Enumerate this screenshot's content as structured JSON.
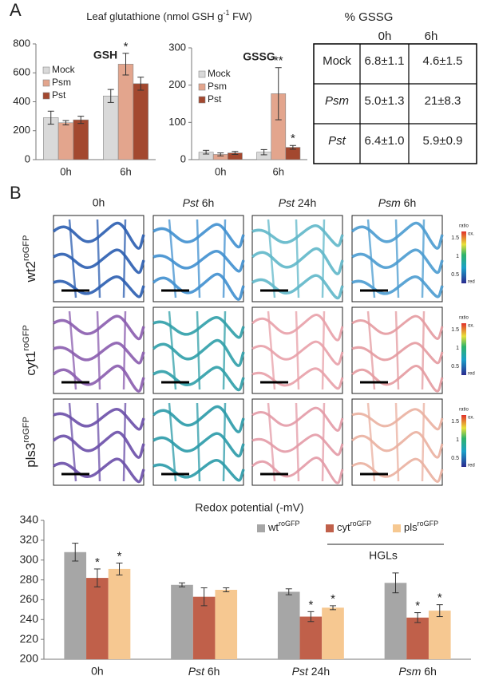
{
  "panel_labels": [
    "A",
    "B"
  ],
  "glutathione_heading": {
    "text": "Leaf glutathione (nmol GSH g",
    "superscript": "-1",
    "text_end": " FW)"
  },
  "chart_data": [
    {
      "type": "bar",
      "title": "GSH",
      "categories": [
        "0h",
        "6h"
      ],
      "ylim": [
        0,
        800
      ],
      "yticks": [
        0,
        200,
        400,
        600,
        800
      ],
      "legend": "upper left",
      "series": [
        {
          "name": "Mock",
          "color": "#d9d9d9",
          "values": [
            290,
            440
          ],
          "errors": [
            45,
            45
          ],
          "annotations": [
            null,
            null
          ]
        },
        {
          "name": "Psm",
          "color": "#e3a58d",
          "values": [
            255,
            660
          ],
          "errors": [
            15,
            75
          ],
          "annotations": [
            null,
            "*"
          ]
        },
        {
          "name": "Pst",
          "color": "#a3482f",
          "values": [
            275,
            525
          ],
          "errors": [
            25,
            45
          ],
          "annotations": [
            null,
            null
          ]
        }
      ]
    },
    {
      "type": "bar",
      "title": "GSSG",
      "categories": [
        "0h",
        "6h"
      ],
      "ylim": [
        0,
        300
      ],
      "yticks": [
        0,
        100,
        200,
        300
      ],
      "legend": "upper left",
      "series": [
        {
          "name": "Mock",
          "color": "#d9d9d9",
          "values": [
            20,
            20
          ],
          "errors": [
            5,
            7
          ],
          "annotations": [
            null,
            null
          ]
        },
        {
          "name": "Psm",
          "color": "#e3a58d",
          "values": [
            14,
            177
          ],
          "errors": [
            4,
            70
          ],
          "annotations": [
            null,
            "**"
          ]
        },
        {
          "name": "Pst",
          "color": "#a3482f",
          "values": [
            18,
            33
          ],
          "errors": [
            4,
            5
          ],
          "annotations": [
            null,
            "*"
          ]
        }
      ]
    },
    {
      "type": "bar",
      "title": "Redox potential (-mV)",
      "categories": [
        "0h",
        "Pst 6h",
        "Pst 24h",
        "Psm 6h"
      ],
      "ylim": [
        200,
        340
      ],
      "yticks": [
        200,
        220,
        240,
        260,
        280,
        300,
        320,
        340
      ],
      "legend": "upper right",
      "group_label": "HGLs",
      "series": [
        {
          "name": "wt",
          "name_superscript": "roGFP",
          "color": "#a6a6a6",
          "values": [
            308,
            275,
            268,
            277
          ],
          "errors": [
            9,
            2,
            3,
            10
          ],
          "annotations": [
            null,
            null,
            null,
            null
          ]
        },
        {
          "name": "cyt",
          "name_superscript": "roGFP",
          "color": "#c0604a",
          "values": [
            282,
            263,
            243,
            242
          ],
          "errors": [
            9,
            9,
            5,
            5
          ],
          "annotations": [
            "*",
            null,
            "*",
            "*"
          ]
        },
        {
          "name": "pls",
          "name_superscript": "roGFP",
          "color": "#f6c891",
          "values": [
            291,
            270,
            252,
            249
          ],
          "errors": [
            6,
            2,
            2,
            6
          ],
          "annotations": [
            "*",
            null,
            "*",
            "*"
          ]
        }
      ]
    }
  ],
  "gssg_table": {
    "title": "% GSSG",
    "columns": [
      "0h",
      "6h"
    ],
    "rows": [
      {
        "label": "Mock",
        "italic": false,
        "cells": [
          "6.8±1.1",
          "4.6±1.5"
        ]
      },
      {
        "label": "Psm",
        "italic": true,
        "cells": [
          "5.0±1.3",
          "21±8.3"
        ]
      },
      {
        "label": "Pst",
        "italic": true,
        "cells": [
          "6.4±1.0",
          "5.9±0.9"
        ]
      }
    ]
  },
  "micrographs": {
    "columns": [
      "0h",
      "Pst 6h",
      "Pst 24h",
      "Psm 6h"
    ],
    "rows": [
      {
        "label": "wt2",
        "superscript": "roGFP"
      },
      {
        "label": "cyt1",
        "superscript": "roGFP"
      },
      {
        "label": "pls3",
        "superscript": "roGFP"
      }
    ],
    "colorbar": {
      "title": "ratio",
      "top": "ox.",
      "bottom": "red",
      "labels": [
        "1.5",
        "1",
        "0.5"
      ]
    }
  }
}
